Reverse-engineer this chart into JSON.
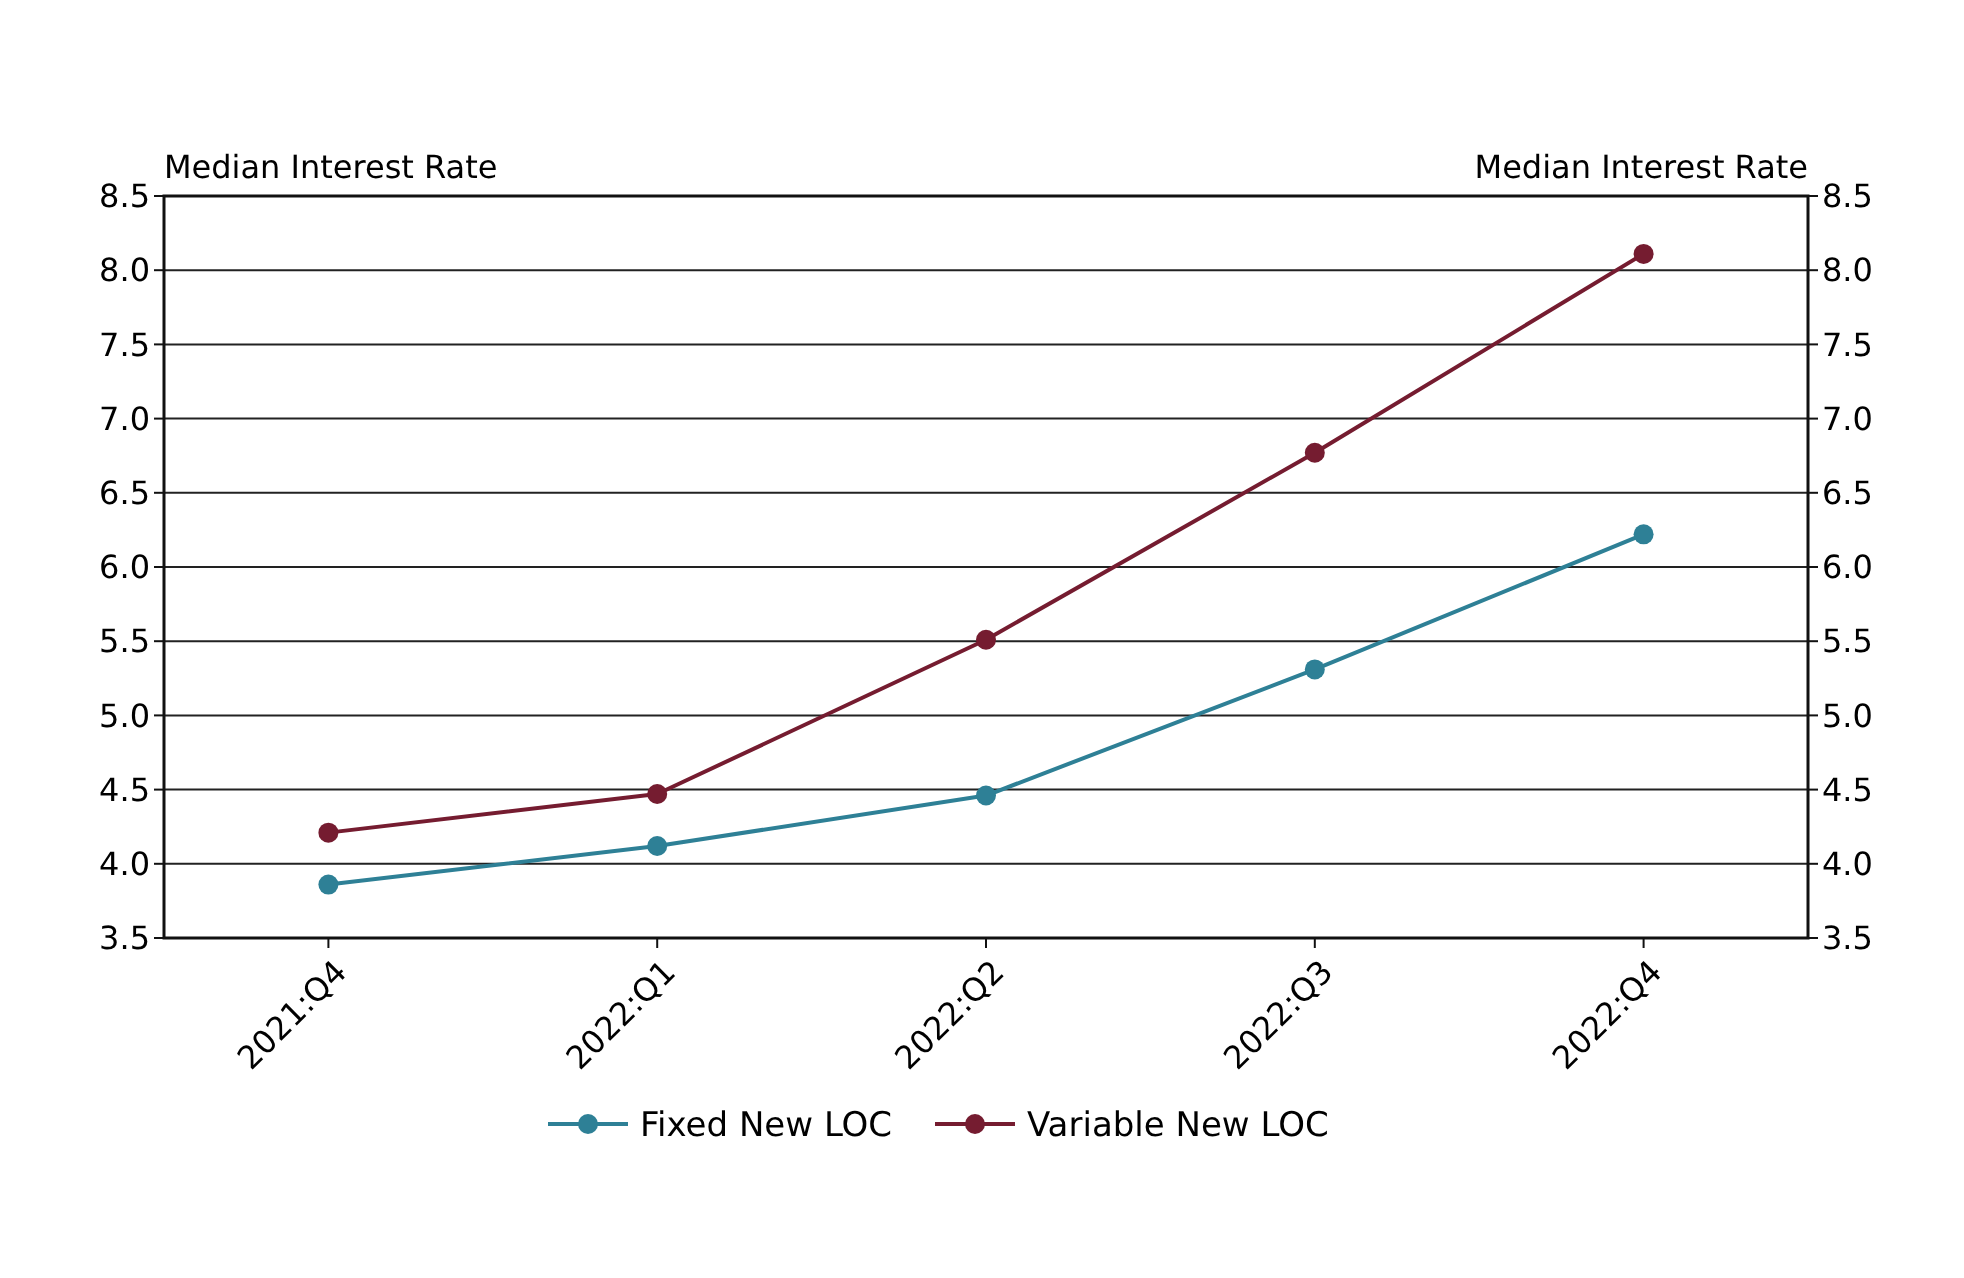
{
  "chart_data": {
    "type": "line",
    "ylabel": "Median Interest Rate",
    "y2label": "Median Interest Rate",
    "categories": [
      "2021:Q4",
      "2022:Q1",
      "2022:Q2",
      "2022:Q3",
      "2022:Q4"
    ],
    "series": [
      {
        "name": "Fixed New LOC",
        "color": "#2e8096",
        "values": [
          3.86,
          4.12,
          4.46,
          5.31,
          6.22
        ]
      },
      {
        "name": "Variable New LOC",
        "color": "#751c30",
        "values": [
          4.21,
          4.47,
          5.51,
          6.77,
          8.11
        ]
      }
    ],
    "ylim": [
      3.5,
      8.5
    ],
    "yticks": [
      {
        "value": 3.5,
        "label": "3.5"
      },
      {
        "value": 4,
        "label": "4.0"
      },
      {
        "value": 4.5,
        "label": "4.5"
      },
      {
        "value": 5,
        "label": "5.0"
      },
      {
        "value": 5.5,
        "label": "5.5"
      },
      {
        "value": 6,
        "label": "6.0"
      },
      {
        "value": 6.5,
        "label": "6.5"
      },
      {
        "value": 7,
        "label": "7.0"
      },
      {
        "value": 7.5,
        "label": "7.5"
      },
      {
        "value": 8,
        "label": "8.0"
      },
      {
        "value": 8.5,
        "label": "8.5"
      }
    ],
    "y2lim": [
      3.5,
      8.5
    ],
    "y2ticks": [
      {
        "value": 3.5,
        "label": "3.5"
      },
      {
        "value": 4,
        "label": "4.0"
      },
      {
        "value": 4.5,
        "label": "4.5"
      },
      {
        "value": 5,
        "label": "5.0"
      },
      {
        "value": 5.5,
        "label": "5.5"
      },
      {
        "value": 6,
        "label": "6.0"
      },
      {
        "value": 6.5,
        "label": "6.5"
      },
      {
        "value": 7,
        "label": "7.0"
      },
      {
        "value": 7.5,
        "label": "7.5"
      },
      {
        "value": 8,
        "label": "8.0"
      },
      {
        "value": 8.5,
        "label": "8.5"
      }
    ],
    "grid": "y",
    "legend": "bottom",
    "marker": "circle",
    "line_style": "solid"
  }
}
